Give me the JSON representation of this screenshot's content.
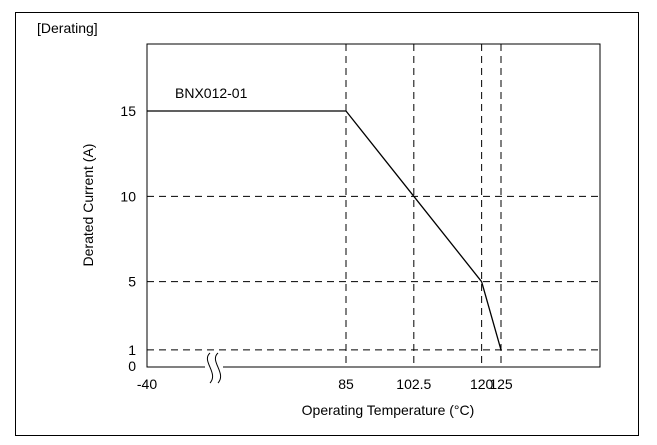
{
  "chart_data": {
    "type": "line",
    "title": "[Derating]",
    "xlabel": "Operating Temperature (°C)",
    "ylabel": "Derated Current (A)",
    "x_ticks": [
      "-40",
      "85",
      "102.5",
      "120",
      "125"
    ],
    "y_ticks": [
      "0",
      "1",
      "5",
      "10",
      "15"
    ],
    "xlim": [
      -40,
      125
    ],
    "ylim": [
      0,
      15
    ],
    "axis_break": "x",
    "grid": "dashed",
    "series": [
      {
        "name": "BNX012-01",
        "points": [
          [
            -40,
            15
          ],
          [
            85,
            15
          ],
          [
            102.5,
            10
          ],
          [
            120,
            5
          ],
          [
            125,
            1
          ]
        ]
      }
    ]
  }
}
